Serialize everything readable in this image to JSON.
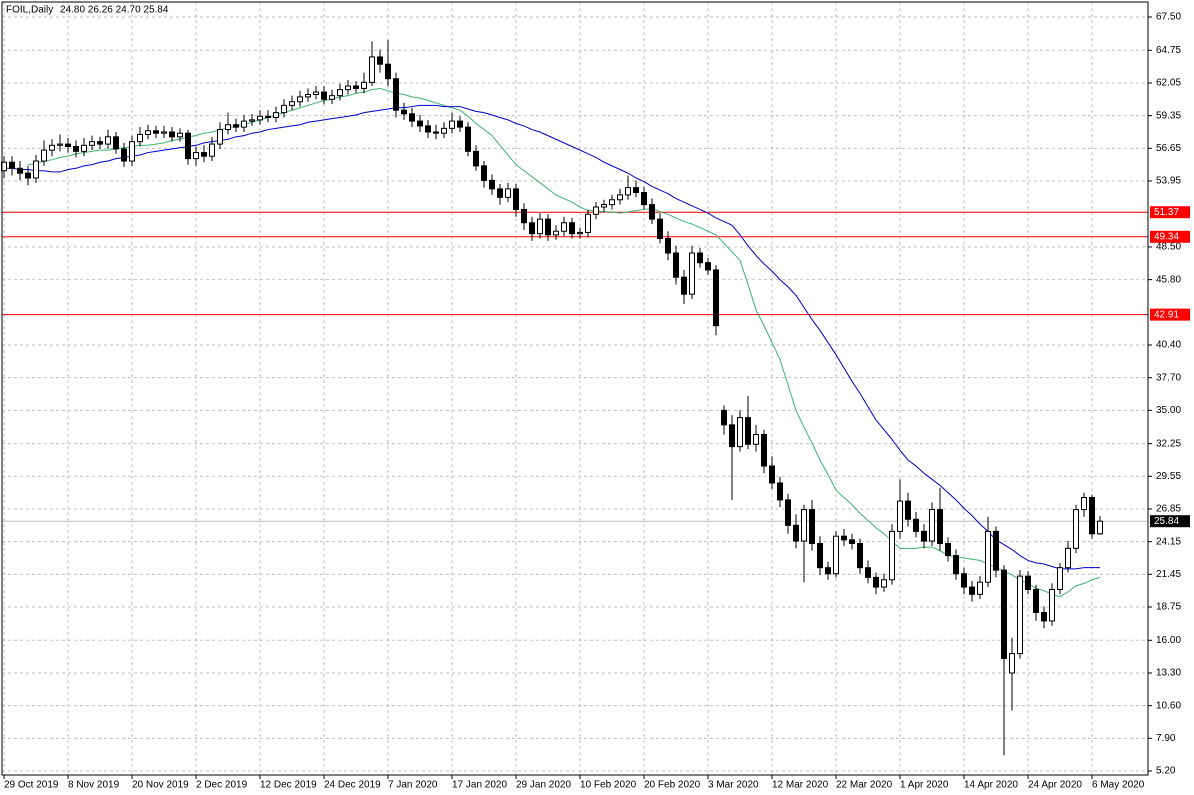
{
  "header": {
    "symbol": "FOIL,Daily",
    "info": "24.80 26.26 24.70 25.84"
  },
  "chart_data": {
    "type": "candlestick",
    "categories": [
      "29 Oct 2019",
      null,
      null,
      null,
      null,
      null,
      null,
      null,
      "8 Nov 2019",
      null,
      null,
      null,
      null,
      null,
      null,
      null,
      "20 Nov 2019",
      null,
      null,
      null,
      null,
      null,
      null,
      null,
      "2 Dec 2019",
      null,
      null,
      null,
      null,
      null,
      null,
      null,
      "12 Dec 2019",
      null,
      null,
      null,
      null,
      null,
      null,
      null,
      "24 Dec 2019",
      null,
      null,
      null,
      null,
      null,
      null,
      null,
      "7 Jan 2020",
      null,
      null,
      null,
      null,
      null,
      null,
      null,
      "17 Jan 2020",
      null,
      null,
      null,
      null,
      null,
      null,
      null,
      "29 Jan 2020",
      null,
      null,
      null,
      null,
      null,
      null,
      null,
      "10 Feb 2020",
      null,
      null,
      null,
      null,
      null,
      null,
      null,
      "20 Feb 2020",
      null,
      null,
      null,
      null,
      null,
      null,
      null,
      "3 Mar 2020",
      null,
      null,
      null,
      null,
      null,
      null,
      null,
      "12 Mar 2020",
      null,
      null,
      null,
      null,
      null,
      null,
      null,
      "22 Mar 2020",
      null,
      null,
      null,
      null,
      null,
      null,
      null,
      "1 Apr 2020",
      null,
      null,
      null,
      null,
      null,
      null,
      null,
      "14 Apr 2020",
      null,
      null,
      null,
      null,
      null,
      null,
      null,
      "24 Apr 2020",
      null,
      null,
      null,
      null,
      null,
      null,
      null,
      "6 May 2020",
      null
    ],
    "open": [
      54.8,
      55.5,
      55.0,
      54.6,
      54.2,
      55.6,
      56.5,
      56.9,
      57.0,
      56.8,
      56.4,
      56.9,
      57.2,
      57.0,
      57.6,
      56.6,
      55.6,
      57.2,
      57.8,
      58.1,
      57.9,
      58.0,
      57.6,
      57.9,
      55.8,
      56.3,
      56.0,
      57.0,
      58.2,
      58.6,
      58.4,
      58.9,
      59.0,
      59.3,
      59.2,
      59.6,
      60.2,
      60.5,
      60.9,
      61.1,
      61.3,
      60.7,
      61.0,
      61.5,
      61.8,
      61.6,
      62.1,
      64.2,
      63.6,
      62.4,
      59.8,
      59.5,
      58.9,
      58.5,
      58.0,
      57.9,
      58.3,
      58.9,
      58.4,
      56.4,
      55.2,
      54.0,
      53.3,
      52.6,
      53.3,
      51.6,
      50.5,
      49.6,
      50.8,
      49.5,
      49.8,
      50.5,
      49.6,
      49.7,
      51.2,
      51.8,
      52.0,
      52.4,
      52.8,
      53.4,
      53.0,
      52.0,
      50.8,
      49.2,
      48.0,
      46.0,
      44.6,
      48.0,
      47.2,
      46.6,
      35.0,
      33.8,
      32.0,
      34.4,
      32.2,
      33.0,
      30.4,
      29.0,
      27.6,
      25.5,
      24.2,
      26.8,
      24.0,
      22.0,
      21.5,
      24.6,
      24.3,
      24.0,
      22.0,
      21.2,
      20.4,
      21.0,
      25.0,
      27.5,
      26.0,
      25.0,
      24.2,
      26.8,
      24.0,
      23.0,
      21.5,
      20.4,
      19.8,
      20.8,
      25.0,
      21.8,
      13.3,
      14.9,
      21.3,
      20.2,
      18.3,
      17.6,
      20.2,
      22.0,
      23.6,
      26.8,
      27.8,
      24.8
    ],
    "high": [
      56.0,
      56.0,
      55.6,
      55.2,
      56.1,
      57.3,
      57.4,
      57.8,
      57.5,
      57.3,
      57.5,
      57.7,
      57.6,
      58.2,
      58.0,
      57.1,
      57.7,
      58.4,
      58.6,
      58.5,
      58.5,
      58.4,
      58.3,
      58.2,
      56.8,
      56.9,
      57.6,
      58.8,
      59.6,
      59.1,
      59.4,
      59.5,
      59.8,
      59.8,
      60.1,
      60.7,
      61.0,
      61.4,
      61.6,
      61.8,
      61.8,
      61.5,
      62.0,
      62.3,
      62.2,
      62.9,
      65.5,
      64.8,
      65.6,
      62.9,
      60.4,
      60.0,
      59.4,
      59.0,
      58.6,
      58.8,
      59.6,
      59.3,
      58.8,
      56.9,
      55.6,
      54.5,
      53.7,
      53.8,
      53.7,
      52.1,
      51.0,
      51.3,
      51.2,
      50.3,
      51.0,
      50.9,
      50.1,
      51.6,
      52.2,
      52.4,
      52.8,
      53.3,
      54.4,
      54.0,
      53.5,
      52.5,
      51.3,
      49.8,
      48.6,
      46.6,
      48.6,
      48.4,
      47.6,
      47.0,
      35.4,
      34.6,
      35.0,
      36.2,
      33.8,
      33.4,
      31.2,
      29.5,
      28.1,
      26.4,
      27.2,
      27.6,
      24.6,
      22.5,
      25.0,
      25.2,
      24.8,
      24.4,
      22.6,
      21.6,
      21.5,
      25.6,
      29.3,
      28.2,
      26.6,
      25.6,
      27.4,
      28.6,
      24.5,
      23.5,
      22.0,
      20.9,
      21.3,
      26.2,
      25.4,
      22.2,
      16.2,
      21.8,
      21.7,
      20.6,
      18.8,
      20.7,
      22.4,
      24.2,
      27.2,
      28.2,
      28.0,
      26.26
    ],
    "low": [
      54.2,
      54.4,
      54.0,
      53.6,
      53.8,
      55.2,
      56.0,
      56.4,
      56.3,
      55.9,
      56.0,
      56.5,
      56.6,
      56.6,
      56.2,
      55.1,
      55.2,
      56.8,
      57.4,
      57.5,
      57.5,
      57.2,
      57.2,
      55.3,
      55.2,
      55.5,
      55.6,
      56.6,
      57.8,
      58.0,
      58.0,
      58.5,
      58.6,
      58.8,
      58.8,
      59.2,
      59.8,
      60.1,
      60.5,
      60.7,
      60.3,
      60.3,
      60.6,
      61.1,
      61.2,
      61.2,
      61.8,
      62.9,
      61.8,
      59.2,
      59.0,
      58.4,
      58.0,
      57.5,
      57.4,
      57.5,
      57.9,
      58.0,
      56.0,
      54.8,
      53.4,
      52.8,
      52.0,
      52.2,
      51.0,
      49.9,
      49.0,
      49.2,
      49.0,
      49.1,
      49.4,
      49.2,
      49.2,
      49.3,
      50.8,
      51.4,
      51.6,
      52.0,
      52.4,
      52.6,
      51.6,
      50.4,
      48.8,
      47.4,
      45.4,
      43.8,
      44.2,
      46.8,
      46.2,
      41.2,
      33.0,
      27.6,
      31.6,
      31.8,
      31.6,
      29.8,
      28.5,
      27.0,
      24.8,
      23.6,
      20.8,
      23.4,
      21.4,
      21.0,
      21.2,
      23.8,
      23.5,
      21.5,
      20.7,
      19.8,
      20.0,
      20.6,
      24.4,
      25.4,
      24.5,
      23.6,
      23.8,
      23.4,
      22.5,
      21.0,
      19.8,
      19.2,
      19.4,
      20.4,
      21.2,
      6.5,
      10.2,
      14.5,
      19.8,
      17.6,
      17.0,
      17.2,
      19.8,
      21.6,
      23.2,
      26.2,
      24.4,
      24.7
    ],
    "close": [
      55.5,
      55.0,
      54.6,
      54.2,
      55.6,
      56.5,
      56.9,
      57.0,
      56.8,
      56.4,
      56.9,
      57.2,
      57.0,
      57.6,
      56.6,
      55.6,
      57.2,
      57.8,
      58.1,
      57.9,
      58.0,
      57.6,
      57.9,
      55.8,
      56.3,
      56.0,
      57.0,
      58.2,
      58.6,
      58.4,
      58.9,
      59.0,
      59.3,
      59.2,
      59.6,
      60.2,
      60.5,
      60.9,
      61.1,
      61.3,
      60.7,
      61.0,
      61.5,
      61.8,
      61.6,
      62.1,
      64.2,
      63.6,
      62.4,
      59.8,
      59.5,
      58.9,
      58.5,
      58.0,
      57.9,
      58.3,
      58.9,
      58.4,
      56.4,
      55.2,
      54.0,
      53.3,
      52.6,
      53.3,
      51.6,
      50.5,
      49.6,
      50.8,
      49.5,
      49.8,
      50.5,
      49.6,
      49.7,
      51.2,
      51.8,
      52.0,
      52.4,
      52.8,
      53.4,
      53.0,
      52.0,
      50.8,
      49.2,
      48.0,
      46.0,
      44.6,
      48.0,
      47.2,
      46.6,
      42.0,
      33.8,
      32.0,
      34.4,
      32.2,
      33.0,
      30.4,
      29.0,
      27.6,
      25.5,
      24.2,
      26.8,
      24.0,
      22.0,
      21.5,
      24.6,
      24.3,
      24.0,
      22.0,
      21.2,
      20.4,
      21.0,
      25.0,
      27.5,
      26.0,
      25.0,
      24.2,
      26.8,
      24.0,
      23.0,
      21.5,
      20.4,
      19.8,
      20.8,
      25.0,
      21.8,
      14.5,
      14.9,
      21.3,
      20.2,
      18.3,
      17.6,
      20.2,
      22.0,
      23.6,
      26.8,
      27.8,
      24.8,
      25.84
    ],
    "up_color": "#ffffff",
    "down_color": "#000000",
    "candle_stroke": "#000000",
    "series": [
      {
        "color": "#3cb371",
        "values": [
          null,
          null,
          null,
          55.3,
          55.4,
          55.6,
          55.7,
          55.9,
          56.0,
          56.2,
          56.3,
          56.4,
          56.5,
          56.5,
          56.6,
          56.7,
          56.8,
          56.9,
          56.9,
          57.0,
          57.1,
          57.3,
          57.4,
          57.6,
          57.7,
          57.9,
          58.0,
          58.2,
          58.3,
          58.5,
          58.6,
          58.8,
          59.0,
          59.2,
          59.4,
          59.6,
          59.8,
          60.0,
          60.2,
          60.4,
          60.6,
          60.7,
          60.9,
          61.0,
          61.2,
          61.3,
          61.5,
          61.6,
          61.4,
          61.2,
          61.1,
          60.9,
          60.8,
          60.6,
          60.4,
          60.2,
          60.0,
          59.8,
          59.3,
          58.7,
          58.2,
          57.7,
          56.9,
          56.1,
          55.3,
          54.8,
          54.3,
          53.8,
          53.3,
          52.8,
          52.5,
          52.2,
          51.8,
          51.5,
          51.5,
          51.4,
          51.4,
          51.3,
          51.4,
          51.5,
          51.6,
          51.7,
          51.4,
          51.2,
          50.9,
          50.6,
          50.4,
          50.1,
          49.8,
          49.5,
          48.8,
          48.1,
          47.4,
          45.4,
          43.3,
          42.0,
          40.6,
          39.2,
          37.1,
          35.0,
          33.6,
          32.3,
          30.9,
          29.7,
          28.4,
          27.8,
          27.2,
          26.5,
          25.9,
          25.3,
          24.8,
          24.2,
          23.6,
          23.6,
          23.6,
          23.7,
          23.7,
          23.4,
          23.0,
          22.9,
          22.8,
          22.7,
          22.6,
          22.3,
          22.0,
          21.7,
          21.4,
          21.0,
          20.7,
          20.3,
          20.1,
          19.8,
          19.6,
          20.0,
          20.5,
          20.7,
          21.0,
          21.2
        ]
      },
      {
        "color": "#0000cd",
        "values": [
          55.0,
          55.0,
          54.9,
          54.9,
          54.8,
          54.8,
          54.7,
          54.7,
          54.9,
          55.0,
          55.2,
          55.3,
          55.5,
          55.6,
          55.8,
          55.9,
          56.0,
          56.1,
          56.3,
          56.4,
          56.5,
          56.6,
          56.7,
          56.8,
          56.9,
          57.1,
          57.2,
          57.3,
          57.4,
          57.6,
          57.7,
          57.9,
          58.0,
          58.2,
          58.3,
          58.4,
          58.5,
          58.6,
          58.8,
          58.9,
          59.0,
          59.1,
          59.2,
          59.3,
          59.4,
          59.6,
          59.7,
          59.8,
          59.9,
          60.0,
          60.0,
          60.1,
          60.2,
          60.2,
          60.2,
          60.1,
          60.1,
          60.1,
          59.9,
          59.7,
          59.6,
          59.4,
          59.2,
          59.0,
          58.7,
          58.5,
          58.2,
          58.0,
          57.7,
          57.4,
          57.1,
          56.8,
          56.5,
          56.2,
          55.9,
          55.5,
          55.2,
          54.9,
          54.6,
          54.2,
          53.9,
          53.5,
          53.2,
          52.9,
          52.5,
          52.2,
          51.9,
          51.6,
          51.3,
          50.9,
          50.6,
          50.3,
          49.5,
          48.6,
          47.8,
          47.1,
          46.5,
          45.8,
          45.2,
          44.5,
          43.5,
          42.5,
          41.6,
          40.6,
          39.6,
          38.5,
          37.4,
          36.4,
          35.3,
          34.2,
          33.4,
          32.6,
          31.7,
          30.9,
          30.4,
          29.8,
          29.3,
          28.8,
          28.2,
          27.6,
          26.9,
          26.3,
          25.6,
          25.0,
          24.3,
          23.9,
          23.5,
          23.0,
          22.6,
          22.4,
          22.3,
          22.1,
          21.9,
          21.9,
          21.9,
          22.0,
          22.0,
          22.0
        ]
      }
    ],
    "levels": [
      51.37,
      49.34,
      42.91
    ],
    "level_color": "#ff0000",
    "last_line_color": "#c0c0c0",
    "ylim": [
      4.87,
      68.74
    ],
    "yticks": [
      {
        "value": 67.5,
        "label": "67.50"
      },
      {
        "value": 64.75,
        "label": "64.75"
      },
      {
        "value": 62.05,
        "label": "62.05"
      },
      {
        "value": 59.35,
        "label": "59.35"
      },
      {
        "value": 56.65,
        "label": "56.65"
      },
      {
        "value": 53.95,
        "label": "53.95"
      },
      {
        "value": 48.5,
        "label": "48.50"
      },
      {
        "value": 45.8,
        "label": "45.80"
      },
      {
        "value": 40.4,
        "label": "40.40"
      },
      {
        "value": 37.7,
        "label": "37.70"
      },
      {
        "value": 35,
        "label": "35.00"
      },
      {
        "value": 32.25,
        "label": "32.25"
      },
      {
        "value": 29.55,
        "label": "29.55"
      },
      {
        "value": 26.85,
        "label": "26.85"
      },
      {
        "value": 24.15,
        "label": "24.15"
      },
      {
        "value": 21.45,
        "label": "21.45"
      },
      {
        "value": 18.75,
        "label": "18.75"
      },
      {
        "value": 16,
        "label": "16.00"
      },
      {
        "value": 13.3,
        "label": "13.30"
      },
      {
        "value": 10.6,
        "label": "10.60"
      },
      {
        "value": 7.9,
        "label": "7.90"
      },
      {
        "value": 5.2,
        "label": "5.20"
      }
    ],
    "grid": true
  }
}
